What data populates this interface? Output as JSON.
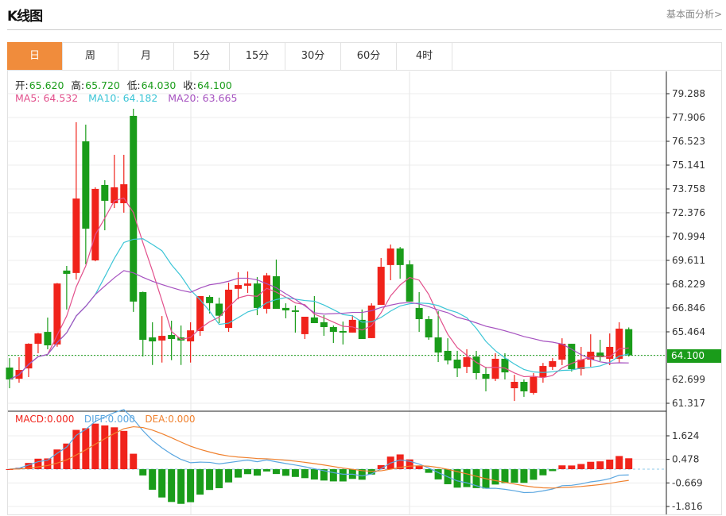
{
  "header": {
    "title": "K线图",
    "link": "基本面分析>"
  },
  "tabs": [
    {
      "label": "日",
      "active": true
    },
    {
      "label": "周"
    },
    {
      "label": "月"
    },
    {
      "label": "5分"
    },
    {
      "label": "15分"
    },
    {
      "label": "30分"
    },
    {
      "label": "60分"
    },
    {
      "label": "4时"
    }
  ],
  "ohlc_legend": {
    "open_label": "开:",
    "open": "65.620",
    "high_label": "高:",
    "high": "65.720",
    "low_label": "低:",
    "low": "64.030",
    "close_label": "收:",
    "close": "64.100"
  },
  "ma_legend": {
    "ma5": "MA5: 64.532",
    "ma10": "MA10: 64.182",
    "ma20": "MA20: 63.665"
  },
  "macd_legend": {
    "macd": "MACD:0.000",
    "diff": "DIFF:0.000",
    "dea": "DEA:0.000"
  },
  "current_price": "64.100",
  "colors": {
    "up": "#f0231b",
    "down": "#1a9c1a",
    "ma5": "#e2508c",
    "ma10": "#3cc5d6",
    "ma20": "#a652c0",
    "diff": "#5aa6e0",
    "dea": "#f0812e",
    "accent": "#f08c3c"
  },
  "chart_data": [
    {
      "type": "candlestick",
      "price_axis_ticks": [
        "79.288",
        "77.906",
        "76.523",
        "75.141",
        "73.758",
        "72.376",
        "70.994",
        "69.611",
        "68.229",
        "66.846",
        "65.464",
        "62.699",
        "61.317"
      ],
      "ylim": [
        61.317,
        79.288
      ],
      "grid": true,
      "candles": [
        [
          63.39,
          63.94,
          62.19,
          62.7
        ],
        [
          62.74,
          63.99,
          62.51,
          63.25
        ],
        [
          63.34,
          64.8,
          62.84,
          64.77
        ],
        [
          64.77,
          65.4,
          64.22,
          65.37
        ],
        [
          65.46,
          66.29,
          64.45,
          64.68
        ],
        [
          64.73,
          68.3,
          64.6,
          68.27
        ],
        [
          69.02,
          69.29,
          66.76,
          68.83
        ],
        [
          68.88,
          77.63,
          68.5,
          73.2
        ],
        [
          76.52,
          77.49,
          69.38,
          71.45
        ],
        [
          69.61,
          73.85,
          69.56,
          73.76
        ],
        [
          73.99,
          74.27,
          71.36,
          73.07
        ],
        [
          72.93,
          75.74,
          72.65,
          73.85
        ],
        [
          72.93,
          75.74,
          72.38,
          74.03
        ],
        [
          78.0,
          78.41,
          66.62,
          67.22
        ],
        [
          67.77,
          67.8,
          64.03,
          65.0
        ],
        [
          65.14,
          66.02,
          63.54,
          64.91
        ],
        [
          64.96,
          66.38,
          63.68,
          65.23
        ],
        [
          65.28,
          66.11,
          63.82,
          65.05
        ],
        [
          65.14,
          65.83,
          63.54,
          64.96
        ],
        [
          64.91,
          66.02,
          63.68,
          65.55
        ],
        [
          65.51,
          67.54,
          65.23,
          67.54
        ],
        [
          67.49,
          67.58,
          66.53,
          67.13
        ],
        [
          67.1,
          67.45,
          65.97,
          66.4
        ],
        [
          65.69,
          68.32,
          65.46,
          67.91
        ],
        [
          67.96,
          68.92,
          67.35,
          68.18
        ],
        [
          68.14,
          68.97,
          67.72,
          68.27
        ],
        [
          68.27,
          68.64,
          66.43,
          66.85
        ],
        [
          66.8,
          68.88,
          66.53,
          68.74
        ],
        [
          68.69,
          69.66,
          66.8,
          66.8
        ],
        [
          66.85,
          67.12,
          66.25,
          66.71
        ],
        [
          66.71,
          66.99,
          65.42,
          66.62
        ],
        [
          65.33,
          66.34,
          65.05,
          66.34
        ],
        [
          66.3,
          67.54,
          65.97,
          65.97
        ],
        [
          66.02,
          66.43,
          65.23,
          65.74
        ],
        [
          65.74,
          65.83,
          64.82,
          65.46
        ],
        [
          65.51,
          66.06,
          64.73,
          65.42
        ],
        [
          65.42,
          66.43,
          65.42,
          66.16
        ],
        [
          66.16,
          66.76,
          65.05,
          65.05
        ],
        [
          65.1,
          67.12,
          65.1,
          66.99
        ],
        [
          67.03,
          69.75,
          67.03,
          69.24
        ],
        [
          69.34,
          70.53,
          68.46,
          70.3
        ],
        [
          70.3,
          70.39,
          68.55,
          69.34
        ],
        [
          69.38,
          69.61,
          67.22,
          67.22
        ],
        [
          66.85,
          67.77,
          65.46,
          66.2
        ],
        [
          66.2,
          66.38,
          65.0,
          65.14
        ],
        [
          65.14,
          66.66,
          63.71,
          64.26
        ],
        [
          64.36,
          65.09,
          63.57,
          63.8
        ],
        [
          63.85,
          64.36,
          62.84,
          63.34
        ],
        [
          63.43,
          64.45,
          63.07,
          63.99
        ],
        [
          64.03,
          64.36,
          62.7,
          63.07
        ],
        [
          63.02,
          63.43,
          62.01,
          62.74
        ],
        [
          62.74,
          64.22,
          62.61,
          63.9
        ],
        [
          63.9,
          64.22,
          62.7,
          63.11
        ],
        [
          62.19,
          62.97,
          61.45,
          62.56
        ],
        [
          62.56,
          62.7,
          61.69,
          62.01
        ],
        [
          61.92,
          63.07,
          61.82,
          62.84
        ],
        [
          62.84,
          63.66,
          62.51,
          63.48
        ],
        [
          63.43,
          63.94,
          63.25,
          63.76
        ],
        [
          63.85,
          65.09,
          63.53,
          64.77
        ],
        [
          64.77,
          64.77,
          63.16,
          63.3
        ],
        [
          63.3,
          64.59,
          62.93,
          63.85
        ],
        [
          63.85,
          65.32,
          63.43,
          64.31
        ],
        [
          64.26,
          65.0,
          63.76,
          63.99
        ],
        [
          63.9,
          65.37,
          63.53,
          64.59
        ],
        [
          63.9,
          66.02,
          63.66,
          65.65
        ],
        [
          65.62,
          65.72,
          64.03,
          64.1
        ]
      ],
      "candle_format": [
        "open",
        "high",
        "low",
        "close"
      ]
    },
    {
      "type": "macd",
      "axis_ticks": [
        "1.624",
        "0.478",
        "-0.669",
        "-1.816"
      ],
      "ylim": [
        -1.816,
        1.624
      ]
    }
  ]
}
